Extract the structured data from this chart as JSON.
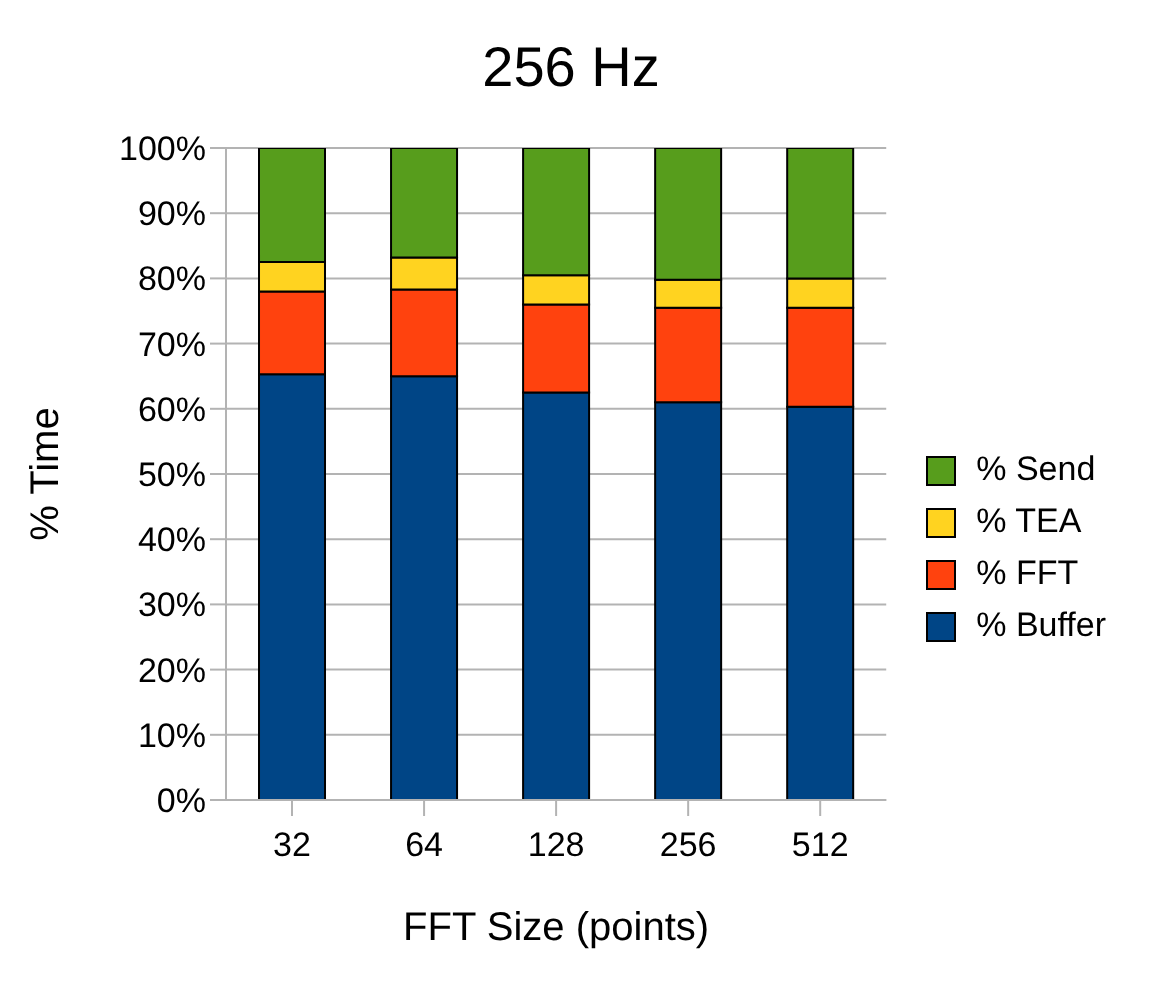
{
  "chart_data": {
    "type": "bar",
    "title": "256 Hz",
    "xlabel": "FFT Size (points)",
    "ylabel": "% Time",
    "categories": [
      "32",
      "64",
      "128",
      "256",
      "512"
    ],
    "stacked": true,
    "series": [
      {
        "name": "% Buffer",
        "color": "#004586",
        "values": [
          65.3,
          65,
          62.5,
          61,
          60.3
        ]
      },
      {
        "name": "% FFT",
        "color": "#ff420e",
        "values": [
          12.7,
          13.3,
          13.5,
          14.5,
          15.2
        ]
      },
      {
        "name": "% TEA",
        "color": "#ffd320",
        "values": [
          4.5,
          4.9,
          4.5,
          4.3,
          4.5
        ]
      },
      {
        "name": "% Send",
        "color": "#579d1c",
        "values": [
          17.5,
          16.8,
          19.5,
          20.2,
          20
        ]
      }
    ],
    "ylim": [
      0,
      100
    ],
    "yticks": [
      {
        "value": 0,
        "label": "0%"
      },
      {
        "value": 10,
        "label": "10%"
      },
      {
        "value": 20,
        "label": "20%"
      },
      {
        "value": 30,
        "label": "30%"
      },
      {
        "value": 40,
        "label": "40%"
      },
      {
        "value": 50,
        "label": "50%"
      },
      {
        "value": 60,
        "label": "60%"
      },
      {
        "value": 70,
        "label": "70%"
      },
      {
        "value": 80,
        "label": "80%"
      },
      {
        "value": 90,
        "label": "90%"
      },
      {
        "value": 100,
        "label": "100%"
      }
    ],
    "grid": "y",
    "legend": "right"
  }
}
